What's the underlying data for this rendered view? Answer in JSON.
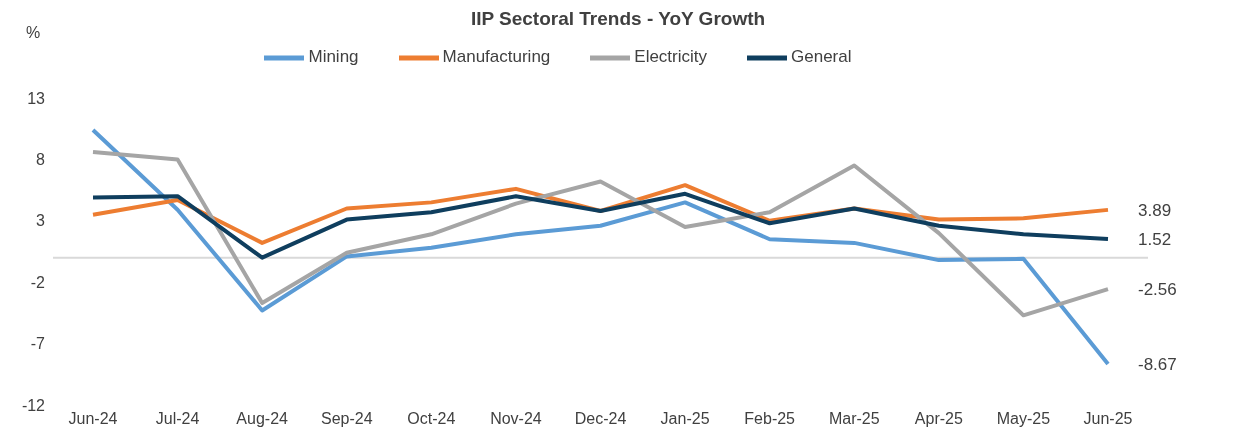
{
  "chart_data": {
    "type": "line",
    "title": "IIP Sectoral Trends - YoY Growth",
    "ylabel": "%",
    "categories": [
      "Jun-24",
      "Jul-24",
      "Aug-24",
      "Sep-24",
      "Oct-24",
      "Nov-24",
      "Dec-24",
      "Jan-25",
      "Feb-25",
      "Mar-25",
      "Apr-25",
      "May-25",
      "Jun-25"
    ],
    "series": [
      {
        "name": "Mining",
        "color": "#5b9bd5",
        "values": [
          10.4,
          3.9,
          -4.3,
          0.1,
          0.8,
          1.9,
          2.6,
          4.5,
          1.5,
          1.2,
          -0.2,
          -0.1,
          -8.67
        ],
        "value_labels": [
          null,
          null,
          null,
          null,
          null,
          null,
          null,
          null,
          null,
          null,
          null,
          null,
          "-8.67"
        ]
      },
      {
        "name": "Manufacturing",
        "color": "#ed7d31",
        "values": [
          3.5,
          4.7,
          1.2,
          4.0,
          4.5,
          5.6,
          3.8,
          5.9,
          3.0,
          4.0,
          3.1,
          3.2,
          3.89
        ],
        "value_labels": [
          null,
          null,
          null,
          null,
          null,
          null,
          null,
          null,
          null,
          null,
          null,
          null,
          "3.89"
        ]
      },
      {
        "name": "Electricity",
        "color": "#a5a5a5",
        "values": [
          8.6,
          8.0,
          -3.7,
          0.4,
          1.9,
          4.4,
          6.2,
          2.5,
          3.7,
          7.5,
          2.0,
          -4.7,
          -2.56
        ],
        "value_labels": [
          null,
          null,
          null,
          null,
          null,
          null,
          null,
          null,
          null,
          null,
          null,
          null,
          "-2.56"
        ]
      },
      {
        "name": "General",
        "color": "#0f3e5e",
        "values": [
          4.9,
          5.0,
          0.0,
          3.1,
          3.7,
          5.0,
          3.8,
          5.2,
          2.8,
          4.0,
          2.6,
          1.9,
          1.52
        ],
        "value_labels": [
          null,
          null,
          null,
          null,
          null,
          null,
          null,
          null,
          null,
          null,
          null,
          null,
          "1.52"
        ]
      }
    ],
    "ylim": [
      -12,
      13
    ],
    "yticks": [
      -12,
      -7,
      -2,
      3,
      8,
      13
    ],
    "grid": false,
    "legend": "top",
    "marker": "none",
    "line_style": "solid"
  }
}
